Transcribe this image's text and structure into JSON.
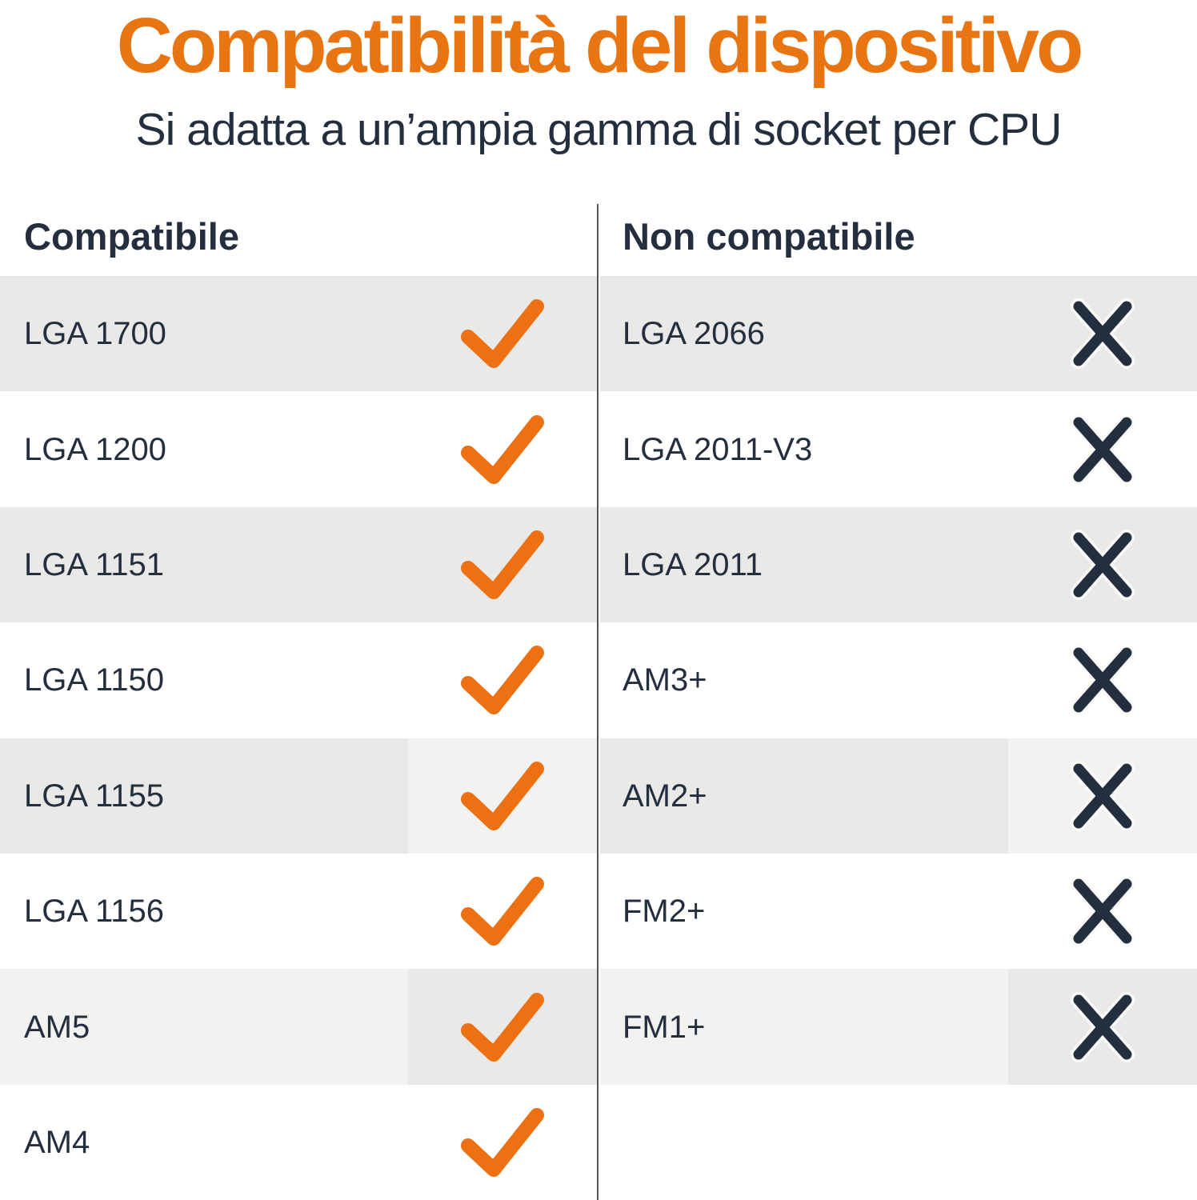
{
  "title": "Compatibilità del dispositivo",
  "subtitle": "Si adatta a un’ampia gamma di socket per CPU",
  "headers": {
    "compatible": "Compatibile",
    "incompatible": "Non compatibile"
  },
  "rows": [
    {
      "compatible": "LGA 1700",
      "compatible_mark": "check",
      "incompatible": "LGA 2066",
      "incompatible_mark": "cross",
      "label_bg": "#E9E9E7",
      "mark_bg": "#E9E9E7"
    },
    {
      "compatible": "LGA 1200",
      "compatible_mark": "check",
      "incompatible": "LGA 2011-V3",
      "incompatible_mark": "cross",
      "label_bg": "#FFFFFF",
      "mark_bg": "#FFFFFF"
    },
    {
      "compatible": "LGA 1151",
      "compatible_mark": "check",
      "incompatible": "LGA 2011",
      "incompatible_mark": "cross",
      "label_bg": "#E9E9E7",
      "mark_bg": "#E9E9E7"
    },
    {
      "compatible": "LGA 1150",
      "compatible_mark": "check",
      "incompatible": "AM3+",
      "incompatible_mark": "cross",
      "label_bg": "#FFFFFF",
      "mark_bg": "#FFFFFF"
    },
    {
      "compatible": "LGA 1155",
      "compatible_mark": "check",
      "incompatible": "AM2+",
      "incompatible_mark": "cross",
      "label_bg": "#E9E9E7",
      "mark_bg": "#F2F2F0"
    },
    {
      "compatible": "LGA 1156",
      "compatible_mark": "check",
      "incompatible": "FM2+",
      "incompatible_mark": "cross",
      "label_bg": "#FFFFFF",
      "mark_bg": "#FFFFFF"
    },
    {
      "compatible": "AM5",
      "compatible_mark": "check",
      "incompatible": "FM1+",
      "incompatible_mark": "cross",
      "label_bg": "#F2F2F0",
      "mark_bg": "#E9E9E7"
    },
    {
      "compatible": "AM4",
      "compatible_mark": "check",
      "incompatible": "",
      "incompatible_mark": "none",
      "label_bg": "#FFFFFF",
      "mark_bg": "#FFFFFF"
    }
  ],
  "icons": {
    "check": {
      "label": "check-icon",
      "color": "#ED7013"
    },
    "cross": {
      "label": "cross-icon",
      "color": "#232F3E",
      "halo": "#FAFAF8"
    }
  },
  "colors": {
    "title": "#E87511",
    "text": "#232F3E",
    "divider": "#51555A",
    "row_gray": "#E9E9E7",
    "row_gray_light": "#F2F2F0",
    "background": "#FFFFFF"
  },
  "chart_data": {
    "type": "table",
    "title": "Compatibilità del dispositivo",
    "subtitle": "Si adatta a un’ampia gamma di socket per CPU",
    "columns": [
      "Compatibile",
      "Non compatibile"
    ],
    "rows": [
      {
        "compatibile": "LGA 1700",
        "compatibile_mark": true,
        "non_compatibile": "LGA 2066",
        "non_compatibile_mark": false
      },
      {
        "compatibile": "LGA 1200",
        "compatibile_mark": true,
        "non_compatibile": "LGA 2011-V3",
        "non_compatibile_mark": false
      },
      {
        "compatibile": "LGA 1151",
        "compatibile_mark": true,
        "non_compatibile": "LGA 2011",
        "non_compatibile_mark": false
      },
      {
        "compatibile": "LGA 1150",
        "compatibile_mark": true,
        "non_compatibile": "AM3+",
        "non_compatibile_mark": false
      },
      {
        "compatibile": "LGA 1155",
        "compatibile_mark": true,
        "non_compatibile": "AM2+",
        "non_compatibile_mark": false
      },
      {
        "compatibile": "LGA 1156",
        "compatibile_mark": true,
        "non_compatibile": "FM2+",
        "non_compatibile_mark": false
      },
      {
        "compatibile": "AM5",
        "compatibile_mark": true,
        "non_compatibile": "FM1+",
        "non_compatibile_mark": false
      },
      {
        "compatibile": "AM4",
        "compatibile_mark": true,
        "non_compatibile": null,
        "non_compatibile_mark": null
      }
    ],
    "legend_position": "none",
    "grid": "alternating-row-stripes"
  }
}
